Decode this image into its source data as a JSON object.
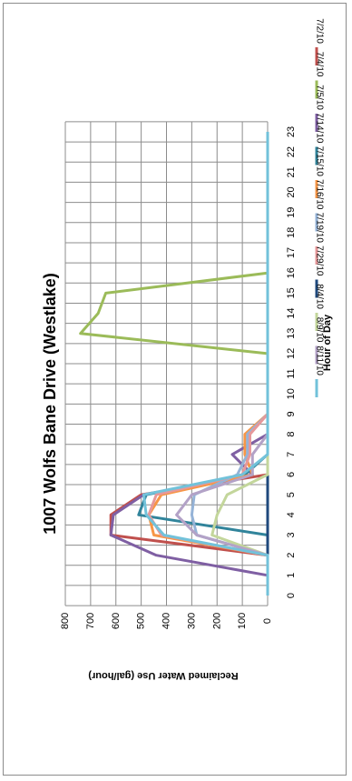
{
  "chart_data": {
    "type": "line",
    "title": "1007 Wolfs Bane Drive (Westlake)",
    "xlabel": "Hour of Day",
    "ylabel": "Reclaimed Water Use (gal/hour)",
    "ylim": [
      0,
      800
    ],
    "yticks": [
      0,
      100,
      200,
      300,
      400,
      500,
      600,
      700,
      800
    ],
    "x": [
      0,
      1,
      2,
      3,
      4,
      5,
      6,
      7,
      8,
      9,
      10,
      11,
      12,
      13,
      14,
      15,
      16,
      17,
      18,
      19,
      20,
      21,
      22,
      23
    ],
    "grid": true,
    "legend_position": "right",
    "series": [
      {
        "name": "7/2/10",
        "color": "#c0504d",
        "values": [
          0,
          0,
          0,
          620,
          620,
          500,
          0,
          0,
          0,
          0,
          0,
          0,
          0,
          0,
          0,
          0,
          0,
          0,
          0,
          0,
          0,
          0,
          0,
          0
        ]
      },
      {
        "name": "7/4/10",
        "color": "#9bbb59",
        "values": [
          0,
          0,
          0,
          0,
          0,
          0,
          0,
          0,
          0,
          0,
          0,
          0,
          0,
          740,
          670,
          640,
          0,
          0,
          0,
          0,
          0,
          0,
          0,
          0
        ]
      },
      {
        "name": "7/5/10",
        "color": "#7f5fa3",
        "values": [
          0,
          0,
          440,
          620,
          610,
          490,
          60,
          140,
          0,
          0,
          0,
          0,
          0,
          0,
          0,
          0,
          0,
          0,
          0,
          0,
          0,
          0,
          0,
          0
        ]
      },
      {
        "name": "7/14/10",
        "color": "#31849b",
        "values": [
          0,
          0,
          0,
          0,
          510,
          480,
          90,
          0,
          0,
          0,
          0,
          0,
          0,
          0,
          0,
          0,
          0,
          0,
          0,
          0,
          0,
          0,
          0,
          0
        ]
      },
      {
        "name": "7/15/10",
        "color": "#f79646",
        "values": [
          0,
          0,
          0,
          450,
          470,
          420,
          60,
          90,
          90,
          0,
          0,
          0,
          0,
          0,
          0,
          0,
          0,
          0,
          0,
          0,
          0,
          0,
          0,
          0
        ]
      },
      {
        "name": "7/16/10",
        "color": "#95b3d7",
        "values": [
          0,
          0,
          0,
          280,
          300,
          290,
          120,
          80,
          80,
          0,
          0,
          0,
          0,
          0,
          0,
          0,
          0,
          0,
          0,
          0,
          0,
          0,
          0,
          0
        ]
      },
      {
        "name": "7/19/10",
        "color": "#e6989a",
        "values": [
          0,
          0,
          0,
          420,
          470,
          440,
          100,
          70,
          70,
          0,
          0,
          0,
          0,
          0,
          0,
          0,
          0,
          0,
          0,
          0,
          0,
          0,
          0,
          0
        ]
      },
      {
        "name": "7/29/10",
        "color": "#1f497d",
        "values": [
          0,
          0,
          0,
          0,
          0,
          0,
          0,
          0,
          0,
          0,
          0,
          0,
          0,
          0,
          0,
          0,
          0,
          0,
          0,
          0,
          0,
          0,
          0,
          0
        ]
      },
      {
        "name": "8/4/10",
        "color": "#c3d69b",
        "values": [
          0,
          0,
          0,
          220,
          200,
          160,
          0,
          0,
          0,
          0,
          0,
          0,
          0,
          0,
          0,
          0,
          0,
          0,
          0,
          0,
          0,
          0,
          0,
          0
        ]
      },
      {
        "name": "8/9/10",
        "color": "#b3a2c7",
        "values": [
          0,
          0,
          0,
          280,
          360,
          300,
          60,
          60,
          0,
          0,
          0,
          0,
          0,
          0,
          0,
          0,
          0,
          0,
          0,
          0,
          0,
          0,
          0,
          0
        ]
      },
      {
        "name": "8/11/10",
        "color": "#72c2da",
        "values": [
          0,
          0,
          0,
          410,
          480,
          490,
          100,
          0,
          0,
          0,
          0,
          0,
          0,
          0,
          0,
          0,
          0,
          0,
          0,
          0,
          0,
          0,
          0,
          0
        ]
      }
    ]
  }
}
